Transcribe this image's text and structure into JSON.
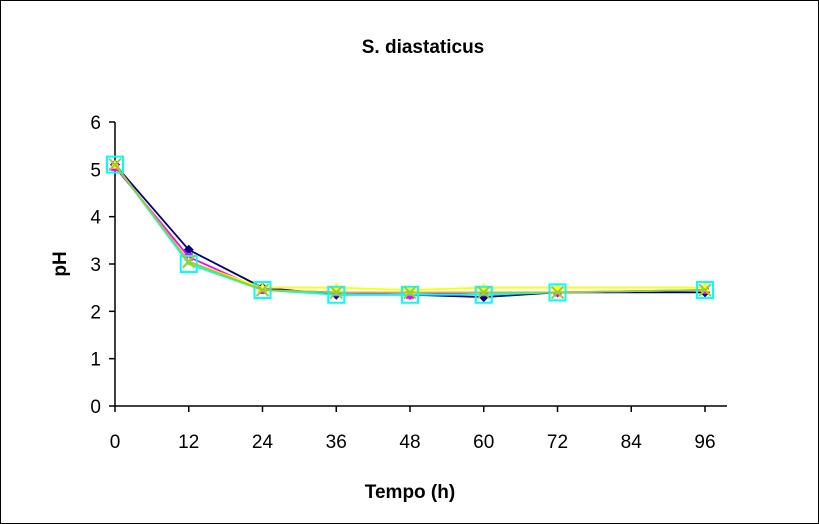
{
  "chart_data": {
    "type": "line",
    "title": "S. diastaticus",
    "xlabel": "Tempo (h)",
    "ylabel": "pH",
    "x_ticks": [
      "0",
      "12",
      "24",
      "36",
      "48",
      "60",
      "72",
      "84",
      "96"
    ],
    "y_ticks": [
      "0",
      "1",
      "2",
      "3",
      "4",
      "5",
      "6"
    ],
    "xlim": [
      0,
      96
    ],
    "ylim": [
      0,
      6
    ],
    "grid": false,
    "x": [
      0,
      12,
      24,
      36,
      48,
      60,
      72,
      96
    ],
    "series": [
      {
        "color": "#000080",
        "marker": "diamond",
        "values": [
          5.1,
          3.3,
          2.5,
          2.35,
          2.35,
          2.3,
          2.4,
          2.4
        ]
      },
      {
        "color": "#ff00ff",
        "marker": "square",
        "values": [
          5.05,
          3.15,
          2.45,
          2.4,
          2.35,
          2.4,
          2.4,
          2.45
        ]
      },
      {
        "color": "#ffff00",
        "marker": "triangle",
        "values": [
          5.1,
          3.05,
          2.5,
          2.5,
          2.45,
          2.5,
          2.5,
          2.5
        ]
      },
      {
        "color": "#00ffff",
        "marker": "square-open",
        "values": [
          5.1,
          3.0,
          2.45,
          2.35,
          2.35,
          2.35,
          2.4,
          2.45
        ]
      },
      {
        "color": "#9acd32",
        "marker": "x",
        "values": [
          5.1,
          3.05,
          2.45,
          2.4,
          2.4,
          2.4,
          2.4,
          2.45
        ]
      }
    ]
  }
}
